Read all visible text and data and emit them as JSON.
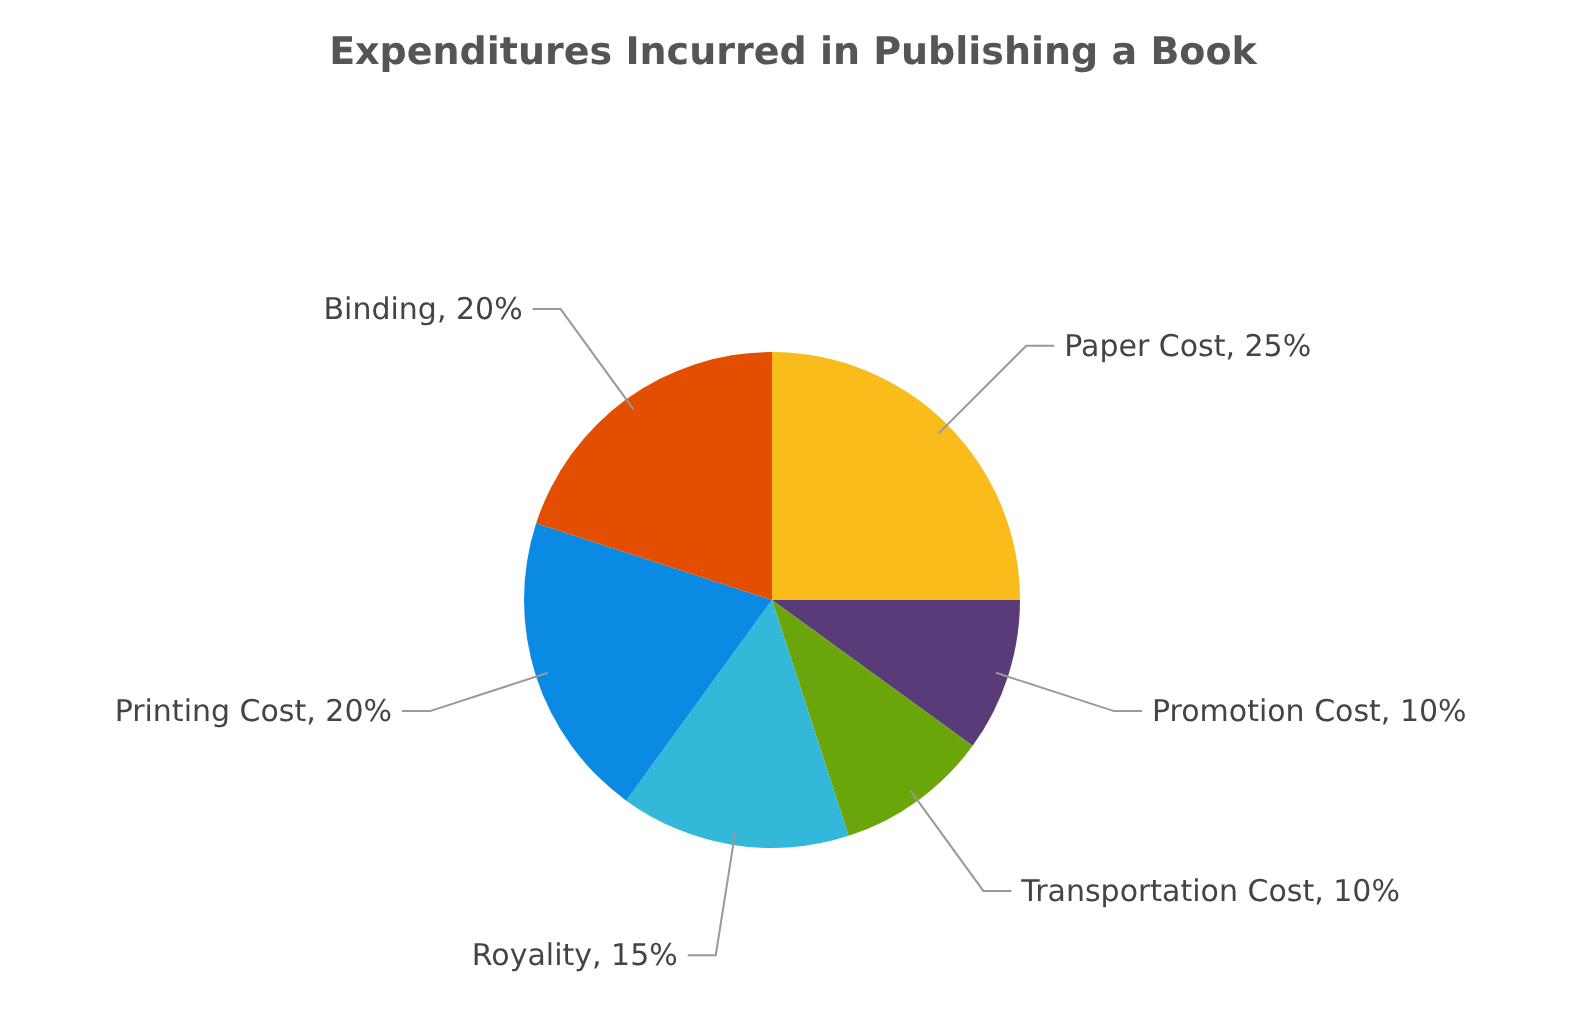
{
  "chart_data": {
    "type": "pie",
    "title": "Expenditures Incurred in Publishing a Book",
    "categories": [
      "Paper Cost",
      "Promotion Cost",
      "Transportation Cost",
      "Royality",
      "Printing Cost",
      "Binding"
    ],
    "values": [
      25,
      10,
      10,
      15,
      20,
      20
    ],
    "value_labels": [
      "25%",
      "10%",
      "10%",
      "15%",
      "20%",
      "20%"
    ],
    "colors": [
      "#f9bc1b",
      "#5a3b7a",
      "#6aa60a",
      "#33b8da",
      "#0a8ae3",
      "#e34e00"
    ]
  }
}
